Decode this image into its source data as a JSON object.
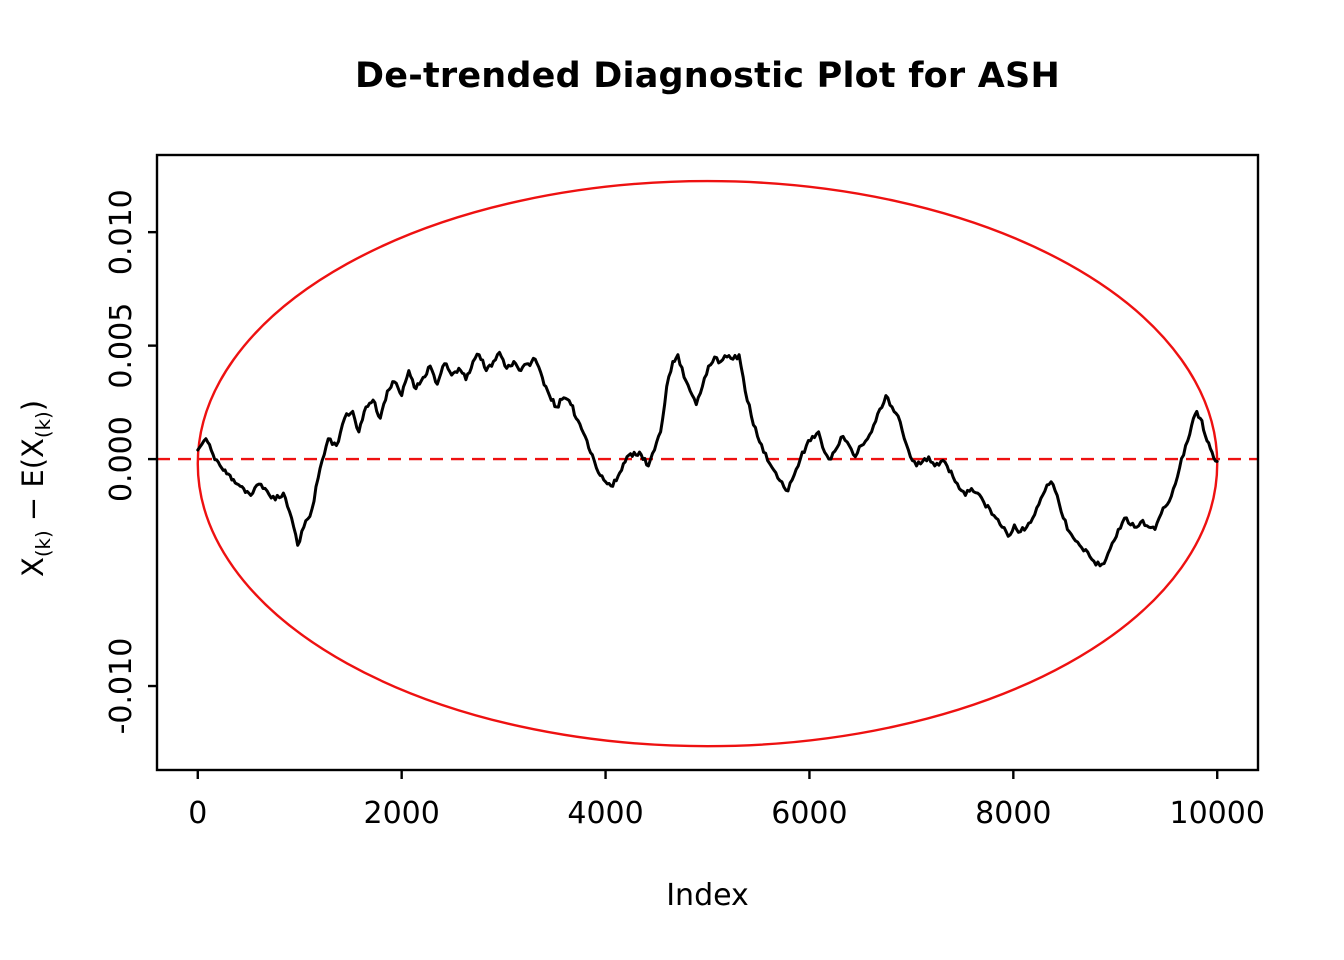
{
  "chart_data": {
    "type": "line",
    "title": "De-trended Diagnostic Plot for ASH",
    "xlabel": "Index",
    "ylabel": "X(k) − E(X(k))",
    "ylabel_parts": [
      {
        "t": "X"
      },
      {
        "t": "(k)",
        "sub": true
      },
      {
        "t": " − E(X"
      },
      {
        "t": "(k)",
        "sub": true
      },
      {
        "t": ")"
      }
    ],
    "xlim": [
      -400,
      10400
    ],
    "ylim": [
      -0.0137,
      0.0134
    ],
    "grid": false,
    "background": "#ffffff",
    "x_ticks": {
      "values": [
        0,
        2000,
        4000,
        6000,
        8000,
        10000
      ],
      "labels": [
        "0",
        "2000",
        "4000",
        "6000",
        "8000",
        "10000"
      ]
    },
    "y_ticks": {
      "values": [
        0.01,
        0.005,
        0.0,
        -0.01
      ],
      "labels": [
        "0.010",
        "0.005",
        "0.000",
        "-0.010"
      ]
    },
    "series": [
      {
        "name": "detrended-order-statistics",
        "kind": "noisy-line",
        "color": "#000000",
        "points": [
          [
            0,
            0.0004
          ],
          [
            80,
            0.0009
          ],
          [
            150,
            0.0002
          ],
          [
            250,
            -0.0005
          ],
          [
            350,
            -0.0009
          ],
          [
            450,
            -0.0013
          ],
          [
            520,
            -0.0016
          ],
          [
            600,
            -0.0011
          ],
          [
            680,
            -0.0014
          ],
          [
            760,
            -0.0018
          ],
          [
            840,
            -0.0015
          ],
          [
            920,
            -0.0026
          ],
          [
            980,
            -0.0038
          ],
          [
            1040,
            -0.003
          ],
          [
            1120,
            -0.0022
          ],
          [
            1200,
            -0.0004
          ],
          [
            1280,
            0.0009
          ],
          [
            1360,
            0.0006
          ],
          [
            1440,
            0.0018
          ],
          [
            1520,
            0.0021
          ],
          [
            1580,
            0.0012
          ],
          [
            1650,
            0.0023
          ],
          [
            1720,
            0.0026
          ],
          [
            1790,
            0.0018
          ],
          [
            1860,
            0.003
          ],
          [
            1930,
            0.0034
          ],
          [
            2000,
            0.0028
          ],
          [
            2070,
            0.0039
          ],
          [
            2140,
            0.0031
          ],
          [
            2210,
            0.0036
          ],
          [
            2280,
            0.0041
          ],
          [
            2350,
            0.0033
          ],
          [
            2420,
            0.0042
          ],
          [
            2490,
            0.0037
          ],
          [
            2560,
            0.004
          ],
          [
            2630,
            0.0035
          ],
          [
            2700,
            0.0043
          ],
          [
            2760,
            0.0046
          ],
          [
            2830,
            0.0039
          ],
          [
            2900,
            0.0043
          ],
          [
            2960,
            0.0047
          ],
          [
            3030,
            0.004
          ],
          [
            3100,
            0.0043
          ],
          [
            3170,
            0.0039
          ],
          [
            3240,
            0.0042
          ],
          [
            3310,
            0.0044
          ],
          [
            3380,
            0.0036
          ],
          [
            3450,
            0.0028
          ],
          [
            3520,
            0.0023
          ],
          [
            3590,
            0.0027
          ],
          [
            3660,
            0.0024
          ],
          [
            3730,
            0.0017
          ],
          [
            3800,
            0.001
          ],
          [
            3870,
            0.0002
          ],
          [
            3930,
            -0.0006
          ],
          [
            4000,
            -0.001
          ],
          [
            4070,
            -0.0012
          ],
          [
            4140,
            -0.0006
          ],
          [
            4210,
            0.0001
          ],
          [
            4280,
            0.0003
          ],
          [
            4350,
            0.0002
          ],
          [
            4420,
            -0.0003
          ],
          [
            4480,
            0.0004
          ],
          [
            4540,
            0.0012
          ],
          [
            4600,
            0.0032
          ],
          [
            4660,
            0.0043
          ],
          [
            4710,
            0.0046
          ],
          [
            4770,
            0.0036
          ],
          [
            4830,
            0.003
          ],
          [
            4890,
            0.0024
          ],
          [
            4950,
            0.0032
          ],
          [
            5010,
            0.0041
          ],
          [
            5070,
            0.0045
          ],
          [
            5130,
            0.0043
          ],
          [
            5190,
            0.0045
          ],
          [
            5250,
            0.0044
          ],
          [
            5310,
            0.0046
          ],
          [
            5370,
            0.003
          ],
          [
            5430,
            0.0019
          ],
          [
            5490,
            0.001
          ],
          [
            5550,
            0.0003
          ],
          [
            5610,
            -0.0002
          ],
          [
            5670,
            -0.0006
          ],
          [
            5730,
            -0.001
          ],
          [
            5790,
            -0.0014
          ],
          [
            5850,
            -0.0007
          ],
          [
            5910,
            0.0
          ],
          [
            5970,
            0.0006
          ],
          [
            6030,
            0.001
          ],
          [
            6090,
            0.0012
          ],
          [
            6150,
            0.0003
          ],
          [
            6210,
            0.0
          ],
          [
            6270,
            0.0005
          ],
          [
            6330,
            0.001
          ],
          [
            6390,
            0.0006
          ],
          [
            6450,
            0.0001
          ],
          [
            6510,
            0.0006
          ],
          [
            6570,
            0.0009
          ],
          [
            6630,
            0.0015
          ],
          [
            6690,
            0.0022
          ],
          [
            6750,
            0.0028
          ],
          [
            6810,
            0.0023
          ],
          [
            6870,
            0.0019
          ],
          [
            6930,
            0.0009
          ],
          [
            6990,
            0.0001
          ],
          [
            7050,
            -0.0003
          ],
          [
            7110,
            -0.0001
          ],
          [
            7170,
            0.0001
          ],
          [
            7230,
            -0.0003
          ],
          [
            7290,
            -0.0001
          ],
          [
            7350,
            -0.0003
          ],
          [
            7410,
            -0.0008
          ],
          [
            7470,
            -0.0013
          ],
          [
            7530,
            -0.0016
          ],
          [
            7590,
            -0.0013
          ],
          [
            7650,
            -0.0015
          ],
          [
            7710,
            -0.0019
          ],
          [
            7770,
            -0.0022
          ],
          [
            7830,
            -0.0026
          ],
          [
            7890,
            -0.003
          ],
          [
            7950,
            -0.0034
          ],
          [
            8010,
            -0.0029
          ],
          [
            8070,
            -0.0032
          ],
          [
            8130,
            -0.003
          ],
          [
            8190,
            -0.0026
          ],
          [
            8250,
            -0.002
          ],
          [
            8310,
            -0.0014
          ],
          [
            8370,
            -0.001
          ],
          [
            8430,
            -0.0016
          ],
          [
            8490,
            -0.0026
          ],
          [
            8550,
            -0.0032
          ],
          [
            8610,
            -0.0036
          ],
          [
            8670,
            -0.0039
          ],
          [
            8730,
            -0.0041
          ],
          [
            8790,
            -0.0045
          ],
          [
            8850,
            -0.0047
          ],
          [
            8910,
            -0.0044
          ],
          [
            8970,
            -0.0037
          ],
          [
            9030,
            -0.0031
          ],
          [
            9090,
            -0.0026
          ],
          [
            9150,
            -0.0029
          ],
          [
            9210,
            -0.003
          ],
          [
            9270,
            -0.0027
          ],
          [
            9330,
            -0.003
          ],
          [
            9390,
            -0.0031
          ],
          [
            9450,
            -0.0024
          ],
          [
            9510,
            -0.002
          ],
          [
            9570,
            -0.0013
          ],
          [
            9630,
            -0.0004
          ],
          [
            9690,
            0.0006
          ],
          [
            9750,
            0.0015
          ],
          [
            9800,
            0.0021
          ],
          [
            9850,
            0.0017
          ],
          [
            9900,
            0.0008
          ],
          [
            9950,
            0.0003
          ],
          [
            10000,
            -0.0001
          ]
        ]
      },
      {
        "name": "zero-reference-line",
        "kind": "hline",
        "color": "#ee1111",
        "y": 0,
        "dashed": true
      },
      {
        "name": "diagnostic-ellipse",
        "kind": "ellipse",
        "color": "#ee1111",
        "cx": 5000,
        "cy": -0.0002,
        "rx": 5000,
        "ry": 0.01245
      }
    ],
    "render_hints": {
      "seed": 11,
      "noise_amp": 0.00013,
      "noise_step": 18
    }
  }
}
